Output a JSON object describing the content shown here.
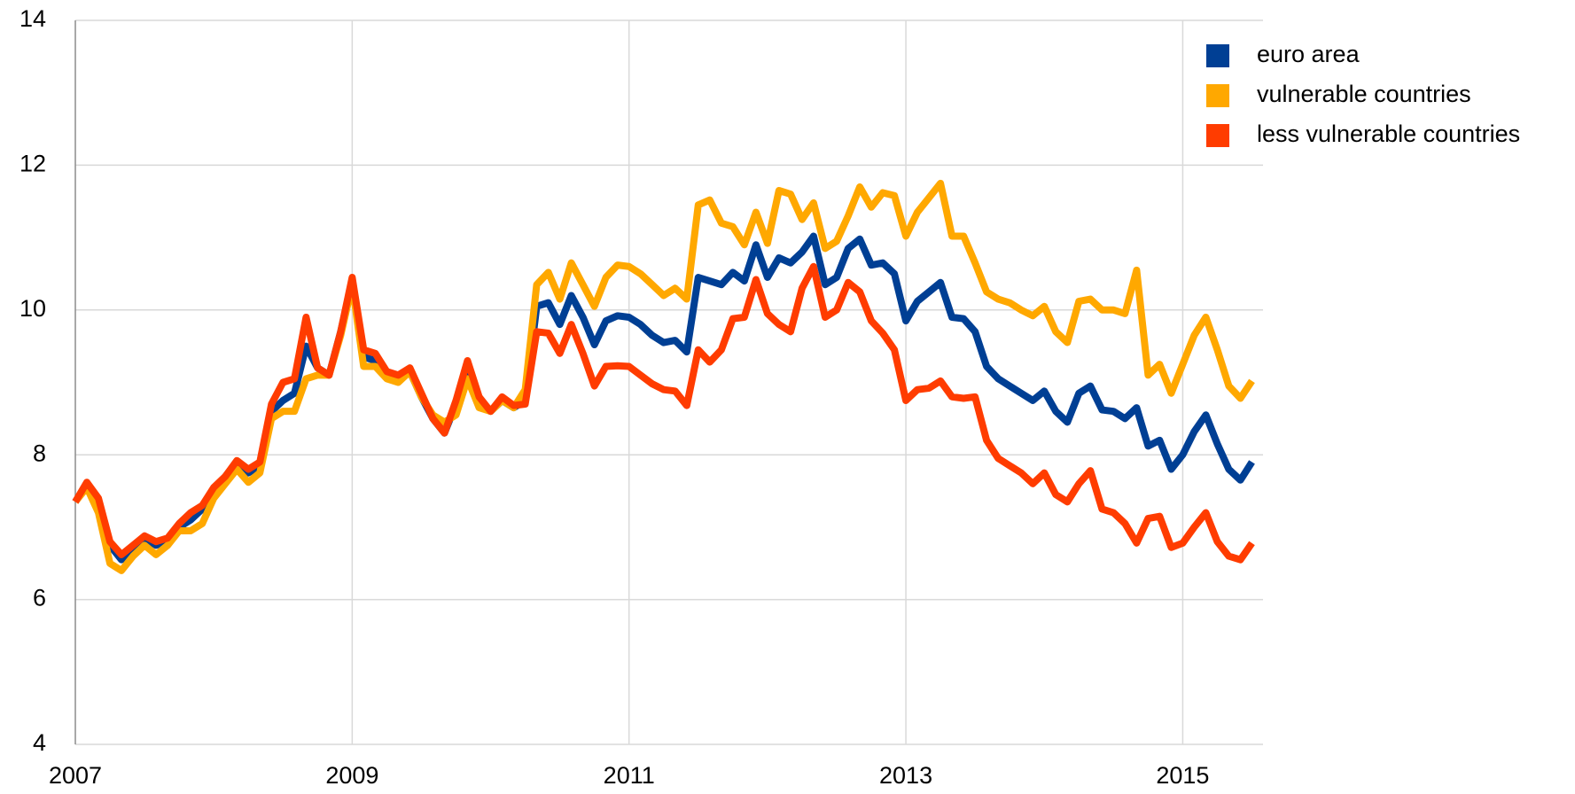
{
  "chart_data": {
    "type": "line",
    "x": [
      2007,
      2007.083,
      2007.167,
      2007.25,
      2007.333,
      2007.417,
      2007.5,
      2007.583,
      2007.667,
      2007.75,
      2007.833,
      2007.917,
      2008,
      2008.083,
      2008.167,
      2008.25,
      2008.333,
      2008.417,
      2008.5,
      2008.583,
      2008.667,
      2008.75,
      2008.833,
      2008.917,
      2009,
      2009.083,
      2009.167,
      2009.25,
      2009.333,
      2009.417,
      2009.5,
      2009.583,
      2009.667,
      2009.75,
      2009.833,
      2009.917,
      2010,
      2010.083,
      2010.167,
      2010.25,
      2010.333,
      2010.417,
      2010.5,
      2010.583,
      2010.667,
      2010.75,
      2010.833,
      2010.917,
      2011,
      2011.083,
      2011.167,
      2011.25,
      2011.333,
      2011.417,
      2011.5,
      2011.583,
      2011.667,
      2011.75,
      2011.833,
      2011.917,
      2012,
      2012.083,
      2012.167,
      2012.25,
      2012.333,
      2012.417,
      2012.5,
      2012.583,
      2012.667,
      2012.75,
      2012.833,
      2012.917,
      2013,
      2013.083,
      2013.167,
      2013.25,
      2013.333,
      2013.417,
      2013.5,
      2013.583,
      2013.667,
      2013.75,
      2013.833,
      2013.917,
      2014,
      2014.083,
      2014.167,
      2014.25,
      2014.333,
      2014.417,
      2014.5,
      2014.583,
      2014.667,
      2014.75,
      2014.833,
      2014.917,
      2015,
      2015.083,
      2015.167,
      2015.25,
      2015.333,
      2015.417,
      2015.5
    ],
    "series": [
      {
        "name": "euro area",
        "color": "#003f94",
        "values": [
          7.35,
          7.6,
          7.35,
          6.75,
          6.55,
          6.7,
          6.85,
          6.75,
          6.8,
          7.0,
          7.1,
          7.25,
          7.5,
          7.7,
          7.9,
          7.75,
          7.85,
          8.6,
          8.75,
          8.85,
          9.5,
          9.2,
          9.1,
          9.7,
          10.4,
          9.35,
          9.3,
          9.1,
          9.05,
          9.15,
          8.8,
          8.5,
          8.3,
          8.7,
          9.25,
          8.75,
          8.6,
          8.75,
          8.65,
          8.75,
          10.05,
          10.1,
          9.8,
          10.2,
          9.9,
          9.52,
          9.85,
          9.92,
          9.9,
          9.8,
          9.65,
          9.55,
          9.58,
          9.42,
          10.45,
          10.4,
          10.35,
          10.52,
          10.4,
          10.9,
          10.45,
          10.72,
          10.65,
          10.8,
          11.02,
          10.35,
          10.45,
          10.85,
          10.98,
          10.62,
          10.65,
          10.5,
          9.85,
          10.12,
          10.25,
          10.38,
          9.9,
          9.88,
          9.7,
          9.22,
          9.05,
          8.95,
          8.85,
          8.75,
          8.88,
          8.6,
          8.45,
          8.85,
          8.95,
          8.62,
          8.6,
          8.5,
          8.65,
          8.12,
          8.2,
          7.8,
          8.0,
          8.32,
          8.55,
          8.15,
          7.8,
          7.65,
          7.9
        ]
      },
      {
        "name": "vulnerable countries",
        "color": "#ffa800",
        "values": [
          7.35,
          7.55,
          7.2,
          6.5,
          6.4,
          6.6,
          6.75,
          6.62,
          6.75,
          6.95,
          6.95,
          7.05,
          7.4,
          7.6,
          7.8,
          7.62,
          7.75,
          8.5,
          8.6,
          8.6,
          9.05,
          9.1,
          9.1,
          9.65,
          10.35,
          9.22,
          9.22,
          9.05,
          9.0,
          9.15,
          8.8,
          8.55,
          8.45,
          8.55,
          9.05,
          8.65,
          8.6,
          8.75,
          8.65,
          8.9,
          10.35,
          10.52,
          10.15,
          10.65,
          10.35,
          10.05,
          10.45,
          10.62,
          10.6,
          10.5,
          10.35,
          10.2,
          10.3,
          10.15,
          11.45,
          11.52,
          11.2,
          11.15,
          10.9,
          11.35,
          10.92,
          11.65,
          11.6,
          11.25,
          11.48,
          10.85,
          10.95,
          11.3,
          11.7,
          11.42,
          11.62,
          11.58,
          11.02,
          11.35,
          11.55,
          11.75,
          11.02,
          11.02,
          10.65,
          10.25,
          10.15,
          10.1,
          10.0,
          9.92,
          10.05,
          9.7,
          9.55,
          10.12,
          10.15,
          10.0,
          10.0,
          9.95,
          10.55,
          9.1,
          9.25,
          8.85,
          9.25,
          9.65,
          9.9,
          9.45,
          8.95,
          8.78,
          9.02
        ]
      },
      {
        "name": "less vulnerable countries",
        "color": "#ff3c00",
        "values": [
          7.35,
          7.62,
          7.4,
          6.8,
          6.62,
          6.75,
          6.88,
          6.8,
          6.85,
          7.05,
          7.2,
          7.3,
          7.55,
          7.7,
          7.92,
          7.8,
          7.9,
          8.7,
          9.0,
          9.05,
          9.9,
          9.2,
          9.1,
          9.7,
          10.45,
          9.45,
          9.4,
          9.15,
          9.1,
          9.2,
          8.85,
          8.5,
          8.3,
          8.75,
          9.3,
          8.8,
          8.6,
          8.8,
          8.68,
          8.7,
          9.7,
          9.68,
          9.4,
          9.8,
          9.4,
          8.95,
          9.22,
          9.23,
          9.22,
          9.1,
          8.98,
          8.9,
          8.88,
          8.68,
          9.45,
          9.28,
          9.45,
          9.88,
          9.9,
          10.42,
          9.95,
          9.8,
          9.7,
          10.3,
          10.6,
          9.9,
          10.0,
          10.38,
          10.25,
          9.85,
          9.68,
          9.45,
          8.75,
          8.9,
          8.92,
          9.02,
          8.8,
          8.78,
          8.8,
          8.2,
          7.95,
          7.85,
          7.75,
          7.6,
          7.75,
          7.45,
          7.35,
          7.6,
          7.78,
          7.25,
          7.2,
          7.05,
          6.78,
          7.12,
          7.15,
          6.72,
          6.78,
          7.0,
          7.2,
          6.8,
          6.6,
          6.55,
          6.78
        ]
      }
    ],
    "xlim": [
      2007,
      2015.58
    ],
    "xticks": [
      2007,
      2009,
      2011,
      2013,
      2015
    ],
    "ylim": [
      4,
      14
    ],
    "yticks": [
      4,
      6,
      8,
      10,
      12,
      14
    ],
    "grid": true,
    "legend": "upper right"
  }
}
